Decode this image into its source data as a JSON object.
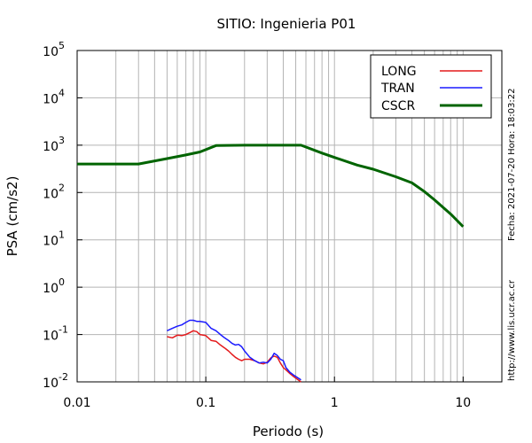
{
  "chart_data": {
    "type": "line",
    "title": "SITIO: Ingenieria P01",
    "xlabel": "Periodo (s)",
    "ylabel": "PSA (cm/s2)",
    "x_scale": "log",
    "y_scale": "log",
    "xlim": [
      0.01,
      20
    ],
    "ylim": [
      0.01,
      100000
    ],
    "grid": true,
    "legend_position": "top-right",
    "x_ticks": [
      {
        "value": 0.01,
        "label": "0.01"
      },
      {
        "value": 0.1,
        "label": "0.1"
      },
      {
        "value": 1,
        "label": "1"
      },
      {
        "value": 10,
        "label": "10"
      }
    ],
    "y_ticks": [
      {
        "value": 0.01,
        "base": "10",
        "exp": "-2"
      },
      {
        "value": 0.1,
        "base": "10",
        "exp": "-1"
      },
      {
        "value": 1,
        "base": "10",
        "exp": "0"
      },
      {
        "value": 10,
        "base": "10",
        "exp": "1"
      },
      {
        "value": 100,
        "base": "10",
        "exp": "2"
      },
      {
        "value": 1000,
        "base": "10",
        "exp": "3"
      },
      {
        "value": 10000,
        "base": "10",
        "exp": "4"
      },
      {
        "value": 100000,
        "base": "10",
        "exp": "5"
      }
    ],
    "series": [
      {
        "name": "LONG",
        "color": "#e41a1c",
        "x": [
          0.05,
          0.055,
          0.06,
          0.065,
          0.07,
          0.075,
          0.08,
          0.085,
          0.09,
          0.1,
          0.11,
          0.12,
          0.13,
          0.14,
          0.15,
          0.16,
          0.17,
          0.18,
          0.19,
          0.2,
          0.22,
          0.24,
          0.26,
          0.28,
          0.3,
          0.32,
          0.34,
          0.36,
          0.38,
          0.4,
          0.42,
          0.45,
          0.48,
          0.5,
          0.55
        ],
        "y": [
          0.09,
          0.085,
          0.097,
          0.095,
          0.1,
          0.11,
          0.12,
          0.115,
          0.1,
          0.095,
          0.075,
          0.072,
          0.06,
          0.052,
          0.045,
          0.038,
          0.033,
          0.03,
          0.028,
          0.03,
          0.03,
          0.028,
          0.025,
          0.024,
          0.026,
          0.032,
          0.035,
          0.033,
          0.025,
          0.02,
          0.018,
          0.015,
          0.013,
          0.012,
          0.01
        ]
      },
      {
        "name": "TRAN",
        "color": "#1a1aff",
        "x": [
          0.05,
          0.055,
          0.06,
          0.065,
          0.07,
          0.075,
          0.08,
          0.085,
          0.09,
          0.1,
          0.11,
          0.12,
          0.13,
          0.14,
          0.15,
          0.16,
          0.17,
          0.18,
          0.19,
          0.2,
          0.22,
          0.24,
          0.26,
          0.28,
          0.3,
          0.32,
          0.34,
          0.36,
          0.38,
          0.4,
          0.42,
          0.45,
          0.48,
          0.5,
          0.55
        ],
        "y": [
          0.12,
          0.135,
          0.15,
          0.16,
          0.18,
          0.2,
          0.2,
          0.19,
          0.19,
          0.18,
          0.135,
          0.12,
          0.1,
          0.085,
          0.075,
          0.065,
          0.06,
          0.062,
          0.055,
          0.045,
          0.033,
          0.028,
          0.025,
          0.026,
          0.025,
          0.03,
          0.04,
          0.036,
          0.03,
          0.028,
          0.02,
          0.016,
          0.014,
          0.013,
          0.011
        ]
      },
      {
        "name": "CSCR",
        "color": "#006400",
        "x": [
          0.01,
          0.03,
          0.05,
          0.07,
          0.09,
          0.12,
          0.2,
          0.3,
          0.55,
          0.8,
          1,
          1.5,
          2,
          3,
          4,
          5,
          6,
          8,
          10
        ],
        "y": [
          400,
          400,
          520,
          620,
          720,
          980,
          1000,
          1000,
          1000,
          680,
          550,
          380,
          310,
          215,
          160,
          105,
          70,
          35,
          19
        ]
      }
    ],
    "annotations": {
      "date": "Fecha: 2021-07-20  Hora: 18:03:22",
      "url": "http://www.lis.ucr.ac.cr"
    }
  }
}
